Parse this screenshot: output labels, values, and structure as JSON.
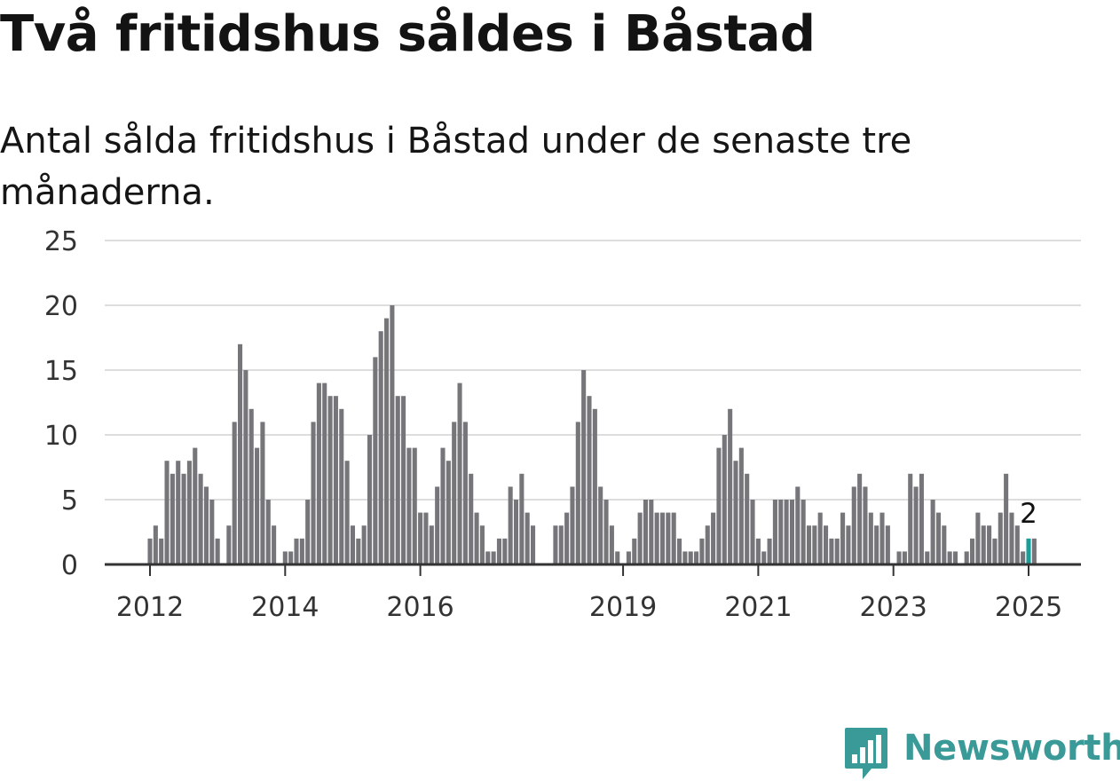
{
  "header": {
    "title": "Två fritidshus såldes i Båstad",
    "subtitle": "Antal sålda fritidshus i Båstad under de senaste tre månaderna."
  },
  "brand": {
    "name": "Newsworthy",
    "color": "#3a9a97"
  },
  "colors": {
    "bar": "#76757a",
    "highlight": "#1a9e98",
    "grid": "#dddddd",
    "axis": "#333333"
  },
  "chart_data": {
    "type": "bar",
    "title": "Två fritidshus såldes i Båstad",
    "subtitle": "Antal sålda fritidshus i Båstad under de senaste tre månaderna.",
    "xlabel": "",
    "ylabel": "",
    "ylim": [
      0,
      25
    ],
    "yticks": [
      0,
      5,
      10,
      15,
      20,
      25
    ],
    "xticks": [
      "2012",
      "2014",
      "2016",
      "2019",
      "2021",
      "2023",
      "2025"
    ],
    "grid": true,
    "x_start": "2011-12",
    "x_end": "2025-01",
    "values": [
      0,
      2,
      3,
      2,
      8,
      7,
      8,
      7,
      8,
      9,
      7,
      6,
      5,
      2,
      0,
      3,
      11,
      17,
      15,
      12,
      9,
      11,
      5,
      3,
      0,
      1,
      1,
      2,
      2,
      5,
      11,
      14,
      14,
      13,
      13,
      12,
      8,
      3,
      2,
      3,
      10,
      16,
      18,
      19,
      20,
      13,
      13,
      9,
      9,
      4,
      4,
      3,
      6,
      9,
      8,
      11,
      14,
      11,
      7,
      4,
      3,
      1,
      1,
      2,
      2,
      6,
      5,
      7,
      4,
      3,
      0,
      0,
      0,
      3,
      3,
      4,
      6,
      11,
      15,
      13,
      12,
      6,
      5,
      3,
      1,
      0,
      1,
      2,
      4,
      5,
      5,
      4,
      4,
      4,
      4,
      2,
      1,
      1,
      1,
      2,
      3,
      4,
      9,
      10,
      12,
      8,
      9,
      7,
      5,
      2,
      1,
      2,
      5,
      5,
      5,
      5,
      6,
      5,
      3,
      3,
      4,
      3,
      2,
      2,
      4,
      3,
      6,
      7,
      6,
      4,
      3,
      4,
      3,
      0,
      1,
      1,
      7,
      6,
      7,
      1,
      5,
      4,
      3,
      1,
      1,
      0,
      1,
      2,
      4,
      3,
      3,
      2,
      4,
      7,
      4,
      3,
      1,
      2,
      2
    ],
    "highlight": {
      "x": "2025-01",
      "value": 2,
      "label": "2"
    }
  }
}
